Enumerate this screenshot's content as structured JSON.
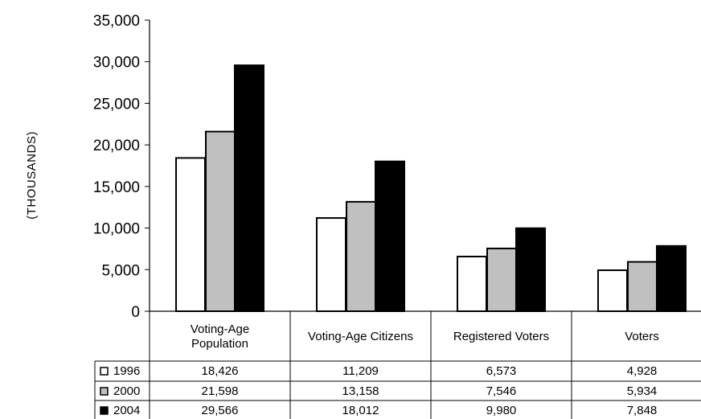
{
  "chart_data": {
    "type": "bar",
    "title": "",
    "xlabel": "",
    "ylabel": "(THOUSANDS)",
    "ylim": [
      0,
      35000
    ],
    "yticks": [
      0,
      5000,
      10000,
      15000,
      20000,
      25000,
      30000,
      35000
    ],
    "ytick_labels": [
      "0",
      "5,000",
      "10,000",
      "15,000",
      "20,000",
      "25,000",
      "30,000",
      "35,000"
    ],
    "grid": false,
    "legend": "data-table-left",
    "categories": [
      [
        "Voting-Age",
        "Population"
      ],
      [
        "Voting-Age Citizens"
      ],
      [
        "Registered Voters"
      ],
      [
        "Voters"
      ]
    ],
    "series": [
      {
        "name": "1996",
        "color": "#ffffff",
        "values": [
          18426,
          11209,
          6573,
          4928
        ],
        "labels": [
          "18,426",
          "11,209",
          "6,573",
          "4,928"
        ]
      },
      {
        "name": "2000",
        "color": "#c0c0c0",
        "values": [
          21598,
          13158,
          7546,
          5934
        ],
        "labels": [
          "21,598",
          "13,158",
          "7,546",
          "5,934"
        ]
      },
      {
        "name": "2004",
        "color": "#000000",
        "values": [
          29566,
          18012,
          9980,
          7848
        ],
        "labels": [
          "29,566",
          "18,012",
          "9,980",
          "7,848"
        ]
      }
    ]
  }
}
